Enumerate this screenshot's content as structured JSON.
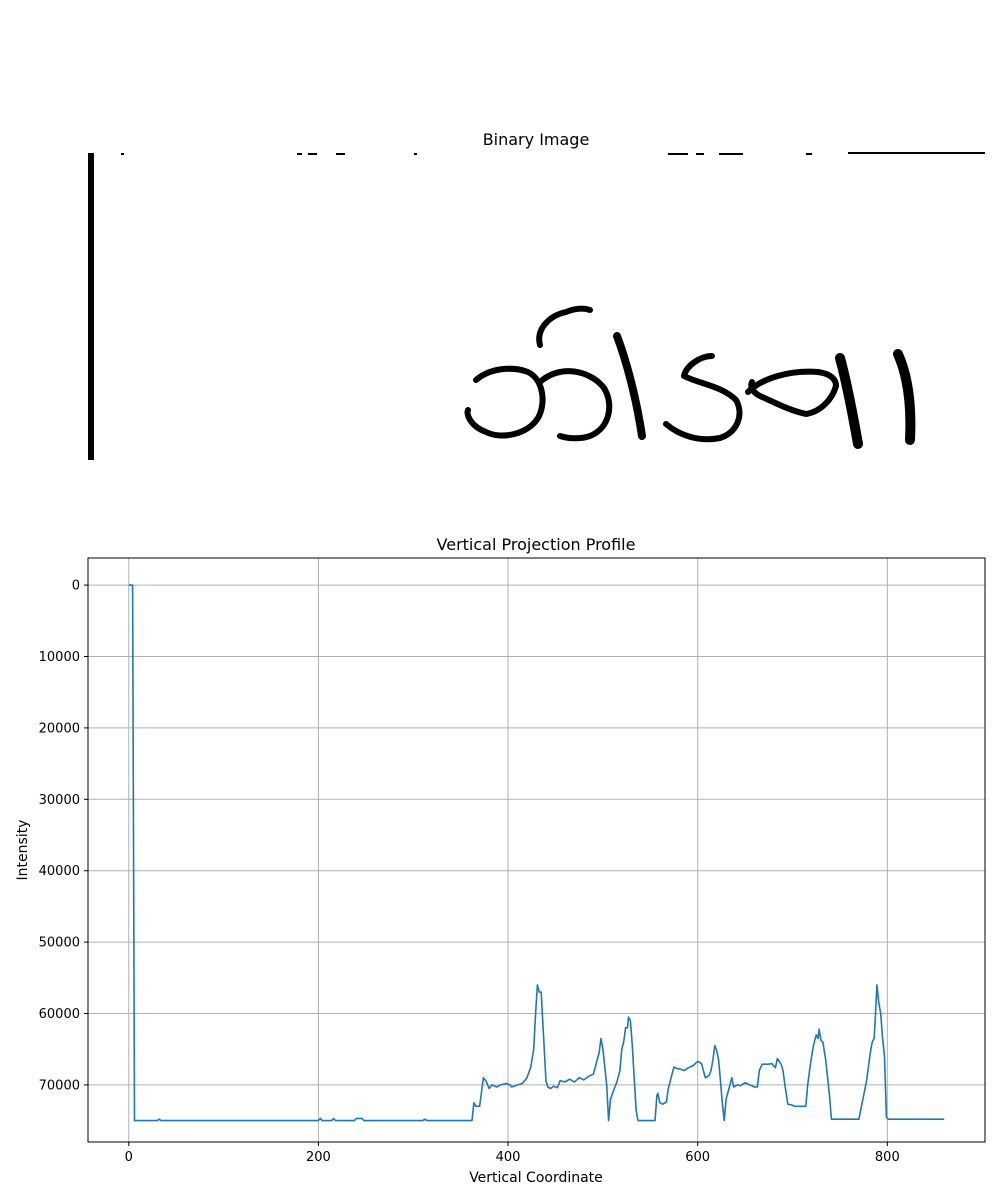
{
  "colors": {
    "line": "#1f77b4",
    "grid": "#b0b0b0",
    "ink": "#000000",
    "background": "#ffffff"
  },
  "image_panel": {
    "title": "Binary Image",
    "handwritten_text": "ठीडगा"
  },
  "chart_data": {
    "type": "line",
    "title": "Vertical Projection Profile",
    "xlabel": "Vertical Coordinate",
    "ylabel": "Intensity",
    "xlim": [
      -43,
      903
    ],
    "ylim": [
      78000,
      -3800
    ],
    "y_inverted": true,
    "grid": true,
    "xticks": [
      0,
      200,
      400,
      600,
      800
    ],
    "yticks": [
      0,
      10000,
      20000,
      30000,
      40000,
      50000,
      60000,
      70000
    ],
    "series": [
      {
        "values": [
          [
            0,
            0
          ],
          [
            4,
            0
          ],
          [
            6,
            75000
          ],
          [
            30,
            75000
          ],
          [
            32,
            74800
          ],
          [
            34,
            75000
          ],
          [
            200,
            75000
          ],
          [
            202,
            74700
          ],
          [
            204,
            75000
          ],
          [
            214,
            75000
          ],
          [
            216,
            74700
          ],
          [
            218,
            75000
          ],
          [
            238,
            75000
          ],
          [
            240,
            74700
          ],
          [
            246,
            74700
          ],
          [
            248,
            75000
          ],
          [
            310,
            75000
          ],
          [
            312,
            74800
          ],
          [
            315,
            75000
          ],
          [
            362,
            75000
          ],
          [
            364,
            72500
          ],
          [
            366,
            73000
          ],
          [
            370,
            73000
          ],
          [
            374,
            69000
          ],
          [
            377,
            69500
          ],
          [
            380,
            70500
          ],
          [
            383,
            70000
          ],
          [
            388,
            70300
          ],
          [
            392,
            70000
          ],
          [
            398,
            69800
          ],
          [
            402,
            70000
          ],
          [
            404,
            70300
          ],
          [
            410,
            70000
          ],
          [
            415,
            69800
          ],
          [
            420,
            69000
          ],
          [
            424,
            67500
          ],
          [
            427,
            65000
          ],
          [
            429,
            60000
          ],
          [
            431,
            56000
          ],
          [
            433,
            57000
          ],
          [
            435,
            57000
          ],
          [
            437,
            62000
          ],
          [
            440,
            69500
          ],
          [
            442,
            70300
          ],
          [
            445,
            70500
          ],
          [
            448,
            70200
          ],
          [
            452,
            70400
          ],
          [
            455,
            69400
          ],
          [
            460,
            69600
          ],
          [
            465,
            69200
          ],
          [
            470,
            69600
          ],
          [
            475,
            69000
          ],
          [
            480,
            69300
          ],
          [
            485,
            68800
          ],
          [
            490,
            68500
          ],
          [
            493,
            67000
          ],
          [
            496,
            65500
          ],
          [
            498,
            63500
          ],
          [
            500,
            65000
          ],
          [
            502,
            67500
          ],
          [
            504,
            70000
          ],
          [
            506,
            75000
          ],
          [
            508,
            72000
          ],
          [
            512,
            70500
          ],
          [
            515,
            69500
          ],
          [
            518,
            68000
          ],
          [
            520,
            65000
          ],
          [
            522,
            64000
          ],
          [
            524,
            62000
          ],
          [
            526,
            62000
          ],
          [
            527,
            60500
          ],
          [
            529,
            61000
          ],
          [
            531,
            64500
          ],
          [
            533,
            69000
          ],
          [
            535,
            73500
          ],
          [
            537,
            75000
          ],
          [
            555,
            75000
          ],
          [
            557,
            71500
          ],
          [
            558,
            71200
          ],
          [
            560,
            72500
          ],
          [
            563,
            72700
          ],
          [
            567,
            72400
          ],
          [
            569,
            70500
          ],
          [
            572,
            69000
          ],
          [
            575,
            67500
          ],
          [
            578,
            67700
          ],
          [
            582,
            67800
          ],
          [
            586,
            68000
          ],
          [
            590,
            67600
          ],
          [
            595,
            67300
          ],
          [
            600,
            66700
          ],
          [
            604,
            67000
          ],
          [
            606,
            68000
          ],
          [
            608,
            69000
          ],
          [
            612,
            68700
          ],
          [
            614,
            68000
          ],
          [
            616,
            66500
          ],
          [
            618,
            64500
          ],
          [
            620,
            65200
          ],
          [
            622,
            66500
          ],
          [
            624,
            69500
          ],
          [
            626,
            72500
          ],
          [
            628,
            75000
          ],
          [
            630,
            72000
          ],
          [
            633,
            70500
          ],
          [
            636,
            69000
          ],
          [
            638,
            70300
          ],
          [
            642,
            70000
          ],
          [
            645,
            70100
          ],
          [
            650,
            69700
          ],
          [
            655,
            70000
          ],
          [
            660,
            70300
          ],
          [
            663,
            70300
          ],
          [
            665,
            68000
          ],
          [
            668,
            67100
          ],
          [
            675,
            67100
          ],
          [
            678,
            67000
          ],
          [
            682,
            67600
          ],
          [
            684,
            66300
          ],
          [
            688,
            67100
          ],
          [
            690,
            68000
          ],
          [
            692,
            70000
          ],
          [
            695,
            72700
          ],
          [
            699,
            72800
          ],
          [
            702,
            73000
          ],
          [
            710,
            73000
          ],
          [
            714,
            73000
          ],
          [
            716,
            70000
          ],
          [
            719,
            67000
          ],
          [
            722,
            64500
          ],
          [
            725,
            63000
          ],
          [
            727,
            63500
          ],
          [
            728,
            62200
          ],
          [
            730,
            63800
          ],
          [
            732,
            64000
          ],
          [
            735,
            66500
          ],
          [
            737,
            69000
          ],
          [
            739,
            71500
          ],
          [
            741,
            74800
          ],
          [
            770,
            74800
          ],
          [
            775,
            71500
          ],
          [
            778,
            69500
          ],
          [
            780,
            67500
          ],
          [
            782,
            65500
          ],
          [
            784,
            64000
          ],
          [
            786,
            63500
          ],
          [
            787,
            61500
          ],
          [
            789,
            56000
          ],
          [
            791,
            58500
          ],
          [
            793,
            60000
          ],
          [
            795,
            63500
          ],
          [
            797,
            66000
          ],
          [
            799,
            74500
          ],
          [
            801,
            74800
          ],
          [
            860,
            74800
          ]
        ]
      }
    ]
  }
}
